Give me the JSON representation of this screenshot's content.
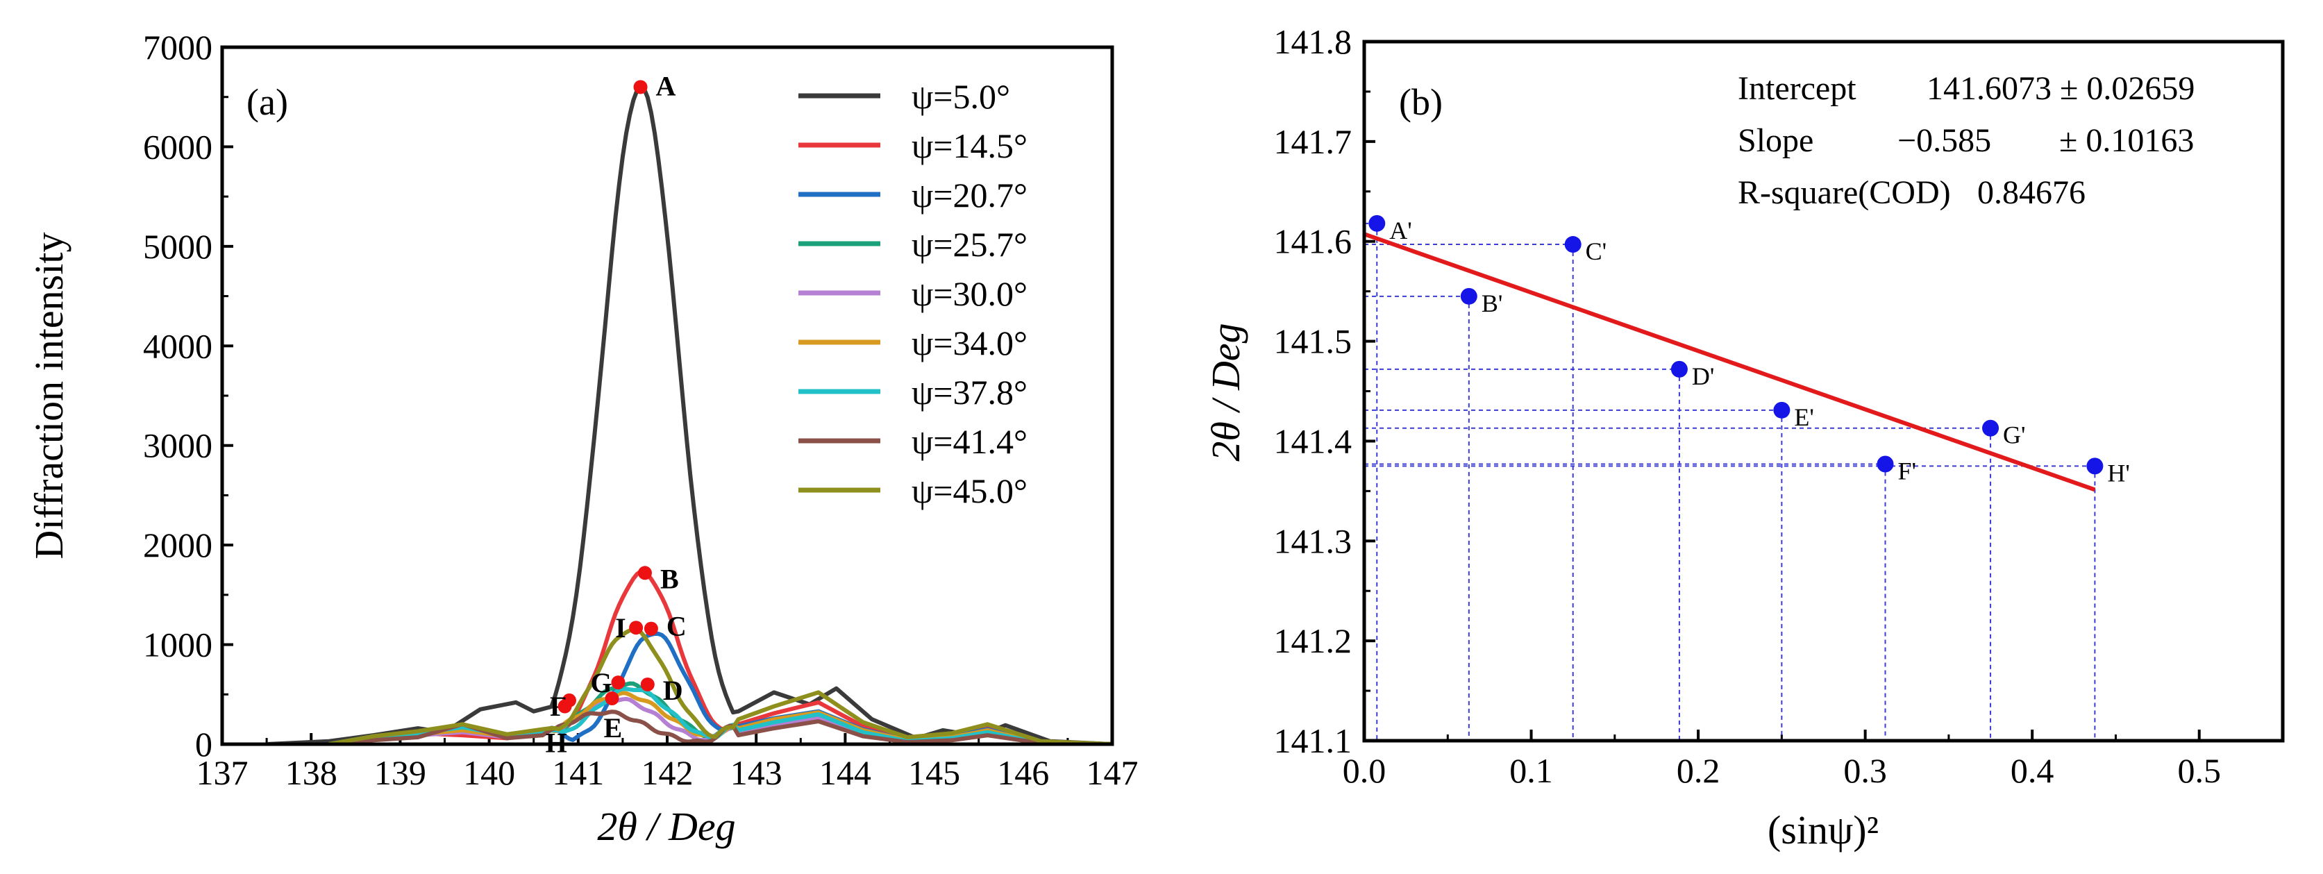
{
  "chart_data": [
    {
      "type": "line",
      "panel_label": "(a)",
      "xlabel": "2θ / Deg",
      "ylabel": "Diffraction intensity",
      "xlim": [
        137,
        147
      ],
      "ylim": [
        0,
        7000
      ],
      "xticks": [
        137,
        138,
        139,
        140,
        141,
        142,
        143,
        144,
        145,
        146,
        147
      ],
      "yticks": [
        0,
        1000,
        2000,
        3000,
        4000,
        5000,
        6000,
        7000
      ],
      "legend_position": "top-right",
      "series": [
        {
          "name": "ψ=5.0°",
          "color": "#3a3a3a",
          "peak_x": 141.7,
          "peak_y": 6600,
          "sigma": 0.42,
          "tail": [
            [
              137.5,
              0
            ],
            [
              138.2,
              30
            ],
            [
              138.7,
              90
            ],
            [
              139.2,
              160
            ],
            [
              139.5,
              120
            ],
            [
              139.9,
              350
            ],
            [
              140.3,
              420
            ],
            [
              140.5,
              330
            ]
          ],
          "tail2": [
            [
              142.8,
              330
            ],
            [
              143.2,
              520
            ],
            [
              143.6,
              400
            ],
            [
              143.9,
              560
            ],
            [
              144.3,
              250
            ],
            [
              144.8,
              60
            ],
            [
              145.1,
              140
            ],
            [
              145.5,
              80
            ],
            [
              145.8,
              190
            ],
            [
              146.3,
              30
            ],
            [
              147,
              0
            ]
          ]
        },
        {
          "name": "ψ=14.5°",
          "color": "#e8383b",
          "peak_x": 141.72,
          "peak_y": 1720,
          "sigma": 0.4,
          "tail": [
            [
              138.2,
              0
            ],
            [
              138.7,
              60
            ],
            [
              139.2,
              110
            ],
            [
              139.7,
              90
            ],
            [
              140.2,
              60
            ],
            [
              140.6,
              120
            ]
          ],
          "tail2": [
            [
              142.8,
              200
            ],
            [
              143.2,
              310
            ],
            [
              143.7,
              420
            ],
            [
              144.2,
              180
            ],
            [
              144.7,
              60
            ],
            [
              145.2,
              90
            ],
            [
              145.6,
              170
            ],
            [
              146.2,
              20
            ],
            [
              147,
              0
            ]
          ]
        },
        {
          "name": "ψ=20.7°",
          "color": "#1f6fc5",
          "peak_x": 141.85,
          "peak_y": 1120,
          "sigma": 0.36,
          "tail": [
            [
              138.2,
              0
            ],
            [
              138.7,
              70
            ],
            [
              139.2,
              90
            ],
            [
              139.7,
              140
            ],
            [
              140.2,
              80
            ],
            [
              140.6,
              120
            ]
          ],
          "tail2": [
            [
              142.8,
              180
            ],
            [
              143.2,
              260
            ],
            [
              143.7,
              330
            ],
            [
              144.2,
              150
            ],
            [
              144.7,
              40
            ],
            [
              145.2,
              80
            ],
            [
              145.6,
              150
            ],
            [
              146.2,
              10
            ],
            [
              147,
              0
            ]
          ]
        },
        {
          "name": "ψ=25.7°",
          "color": "#1aa07a",
          "peak_x": 141.55,
          "peak_y": 600,
          "sigma": 0.45,
          "tail": [
            [
              138.2,
              0
            ],
            [
              138.7,
              80
            ],
            [
              139.2,
              120
            ],
            [
              139.7,
              190
            ],
            [
              140.2,
              90
            ],
            [
              140.6,
              140
            ]
          ],
          "tail2": [
            [
              142.8,
              150
            ],
            [
              143.2,
              230
            ],
            [
              143.7,
              290
            ],
            [
              144.2,
              120
            ],
            [
              144.7,
              30
            ],
            [
              145.2,
              60
            ],
            [
              145.6,
              130
            ],
            [
              146.2,
              10
            ],
            [
              147,
              0
            ]
          ]
        },
        {
          "name": "ψ=30.0°",
          "color": "#b57fd3",
          "peak_x": 141.45,
          "peak_y": 450,
          "sigma": 0.45,
          "tail": [
            [
              138.2,
              0
            ],
            [
              138.7,
              50
            ],
            [
              139.2,
              90
            ],
            [
              139.7,
              120
            ],
            [
              140.2,
              70
            ],
            [
              140.6,
              100
            ]
          ],
          "tail2": [
            [
              142.8,
              120
            ],
            [
              143.2,
              200
            ],
            [
              143.7,
              260
            ],
            [
              144.2,
              100
            ],
            [
              144.7,
              30
            ],
            [
              145.2,
              50
            ],
            [
              145.6,
              110
            ],
            [
              146.2,
              10
            ],
            [
              147,
              0
            ]
          ]
        },
        {
          "name": "ψ=34.0°",
          "color": "#d89a1e",
          "peak_x": 141.5,
          "peak_y": 500,
          "sigma": 0.48,
          "tail": [
            [
              138.2,
              0
            ],
            [
              138.7,
              60
            ],
            [
              139.2,
              100
            ],
            [
              139.7,
              140
            ],
            [
              140.2,
              80
            ],
            [
              140.6,
              110
            ]
          ],
          "tail2": [
            [
              142.8,
              160
            ],
            [
              143.2,
              250
            ],
            [
              143.7,
              320
            ],
            [
              144.2,
              140
            ],
            [
              144.7,
              40
            ],
            [
              145.2,
              70
            ],
            [
              145.6,
              140
            ],
            [
              146.2,
              10
            ],
            [
              147,
              0
            ]
          ]
        },
        {
          "name": "ψ=37.8°",
          "color": "#22c1c8",
          "peak_x": 141.6,
          "peak_y": 560,
          "sigma": 0.42,
          "tail": [
            [
              138.2,
              0
            ],
            [
              138.7,
              70
            ],
            [
              139.2,
              110
            ],
            [
              139.7,
              170
            ],
            [
              140.2,
              90
            ],
            [
              140.6,
              130
            ]
          ],
          "tail2": [
            [
              142.8,
              140
            ],
            [
              143.2,
              220
            ],
            [
              143.7,
              300
            ],
            [
              144.2,
              120
            ],
            [
              144.7,
              30
            ],
            [
              145.2,
              60
            ],
            [
              145.6,
              120
            ],
            [
              146.2,
              10
            ],
            [
              147,
              0
            ]
          ]
        },
        {
          "name": "ψ=41.4°",
          "color": "#8b5048",
          "peak_x": 141.3,
          "peak_y": 320,
          "sigma": 0.45,
          "tail": [
            [
              138.2,
              0
            ],
            [
              138.7,
              40
            ],
            [
              139.2,
              70
            ],
            [
              139.7,
              200
            ],
            [
              140.2,
              60
            ],
            [
              140.6,
              90
            ]
          ],
          "tail2": [
            [
              142.8,
              90
            ],
            [
              143.2,
              160
            ],
            [
              143.7,
              230
            ],
            [
              144.2,
              80
            ],
            [
              144.7,
              20
            ],
            [
              145.2,
              40
            ],
            [
              145.6,
              90
            ],
            [
              146.2,
              10
            ],
            [
              147,
              0
            ]
          ]
        },
        {
          "name": "ψ=45.0°",
          "color": "#8f8f1e",
          "peak_x": 141.6,
          "peak_y": 1150,
          "sigma": 0.4,
          "tail": [
            [
              138.2,
              0
            ],
            [
              138.7,
              80
            ],
            [
              139.2,
              130
            ],
            [
              139.7,
              200
            ],
            [
              140.2,
              100
            ],
            [
              140.6,
              150
            ]
          ],
          "tail2": [
            [
              142.8,
              250
            ],
            [
              143.2,
              380
            ],
            [
              143.7,
              520
            ],
            [
              144.2,
              220
            ],
            [
              144.7,
              70
            ],
            [
              145.2,
              110
            ],
            [
              145.6,
              200
            ],
            [
              146.2,
              30
            ],
            [
              147,
              0
            ]
          ]
        }
      ],
      "points": [
        {
          "label": "A",
          "x": 141.7,
          "y": 6600
        },
        {
          "label": "B",
          "x": 141.75,
          "y": 1720
        },
        {
          "label": "C",
          "x": 141.82,
          "y": 1160
        },
        {
          "label": "I",
          "x": 141.65,
          "y": 1170
        },
        {
          "label": "D",
          "x": 141.78,
          "y": 600
        },
        {
          "label": "G",
          "x": 141.45,
          "y": 620
        },
        {
          "label": "E",
          "x": 141.38,
          "y": 460
        },
        {
          "label": "F",
          "x": 140.9,
          "y": 440
        },
        {
          "label": "H",
          "x": 140.85,
          "y": 380
        }
      ]
    },
    {
      "type": "scatter",
      "panel_label": "(b)",
      "xlabel": "(sinψ)²",
      "ylabel": "2θ / Deg",
      "xlim": [
        0.0,
        0.55
      ],
      "ylim": [
        141.1,
        141.8
      ],
      "xticks": [
        0.0,
        0.1,
        0.2,
        0.3,
        0.4,
        0.5
      ],
      "yticks": [
        141.1,
        141.2,
        141.3,
        141.4,
        141.5,
        141.6,
        141.7,
        141.8
      ],
      "points": [
        {
          "label": "A'",
          "x": 0.0076,
          "y": 141.618
        },
        {
          "label": "B'",
          "x": 0.0627,
          "y": 141.545
        },
        {
          "label": "C'",
          "x": 0.125,
          "y": 141.597
        },
        {
          "label": "D'",
          "x": 0.1887,
          "y": 141.472
        },
        {
          "label": "E'",
          "x": 0.25,
          "y": 141.431
        },
        {
          "label": "F'",
          "x": 0.312,
          "y": 141.377
        },
        {
          "label": "G'",
          "x": 0.375,
          "y": 141.413
        },
        {
          "label": "H'",
          "x": 0.4375,
          "y": 141.375
        }
      ],
      "fit": {
        "intercept": 141.6073,
        "slope": -0.585,
        "x_range": [
          0.0,
          0.4375
        ],
        "color": "#e31a1c"
      },
      "point_color": "#1515e8",
      "stats": {
        "intercept_label": "Intercept",
        "intercept_value": "141.6073 ± 0.02659",
        "slope_label": "Slope",
        "slope_value": "−0.585",
        "slope_error": "± 0.10163",
        "r2_label": "R-square(COD)",
        "r2_value": "0.84676"
      }
    }
  ]
}
